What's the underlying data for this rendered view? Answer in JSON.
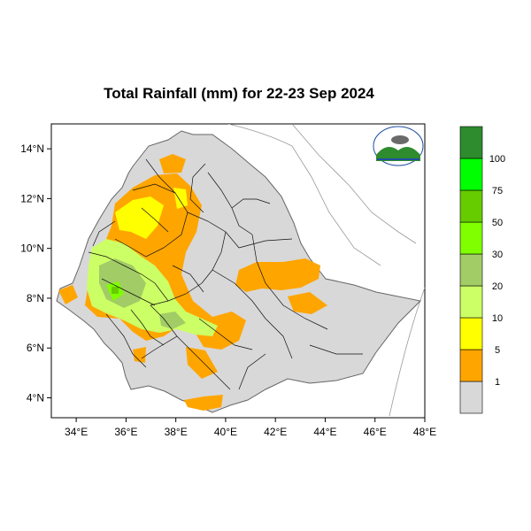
{
  "title": "Total Rainfall (mm) for 22-23 Sep 2024",
  "map": {
    "lon_range": [
      33,
      48
    ],
    "lat_range": [
      3.2,
      15.0
    ],
    "x_ticks": [
      {
        "lon": 34,
        "label": "34°E"
      },
      {
        "lon": 36,
        "label": "36°E"
      },
      {
        "lon": 38,
        "label": "38°E"
      },
      {
        "lon": 40,
        "label": "40°E"
      },
      {
        "lon": 42,
        "label": "42°E"
      },
      {
        "lon": 44,
        "label": "44°E"
      },
      {
        "lon": 46,
        "label": "46°E"
      },
      {
        "lon": 48,
        "label": "48°E"
      }
    ],
    "y_ticks": [
      {
        "lat": 14,
        "label": "14°N"
      },
      {
        "lat": 12,
        "label": "12°N"
      },
      {
        "lat": 10,
        "label": "10°N"
      },
      {
        "lat": 8,
        "label": "8°N"
      },
      {
        "lat": 6,
        "label": "6°N"
      },
      {
        "lat": 4,
        "label": "4°N"
      }
    ]
  },
  "legend": {
    "bins": [
      {
        "color": "#d8d8d8",
        "label": "1"
      },
      {
        "color": "#ffa500",
        "label": "5"
      },
      {
        "color": "#ffff00",
        "label": "10"
      },
      {
        "color": "#ccff66",
        "label": "20"
      },
      {
        "color": "#a2cc66",
        "label": "30"
      },
      {
        "color": "#7fff00",
        "label": "50"
      },
      {
        "color": "#66cc00",
        "label": "75"
      },
      {
        "color": "#00ff00",
        "label": "100"
      },
      {
        "color": "#2e8b2e",
        "label": ""
      }
    ]
  },
  "logo": {
    "icon": "meteorology-agency-logo"
  }
}
